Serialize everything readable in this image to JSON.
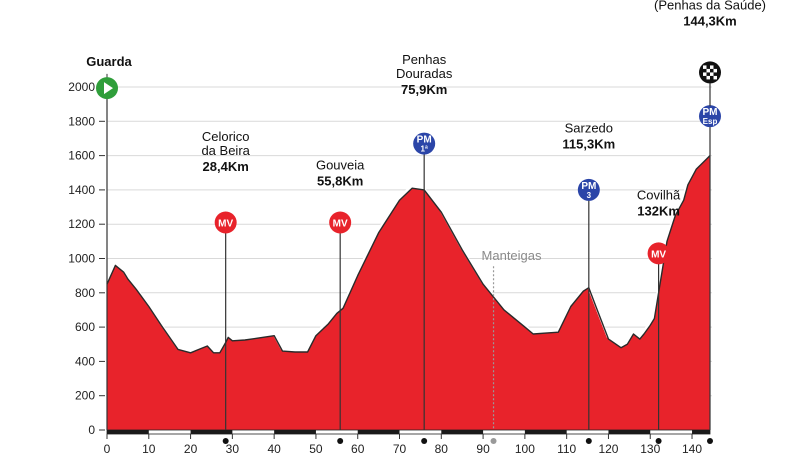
{
  "chart_data": {
    "type": "area",
    "title": "",
    "xlabel": "",
    "ylabel": "",
    "xlim": [
      0,
      144.3
    ],
    "ylim": [
      0,
      2100
    ],
    "x_ticks": [
      0,
      10,
      20,
      30,
      40,
      50,
      60,
      70,
      80,
      90,
      100,
      110,
      120,
      130,
      140
    ],
    "y_ticks": [
      0,
      200,
      400,
      600,
      800,
      1000,
      1200,
      1400,
      1600,
      1800,
      2000
    ],
    "fill_color": "#e8232b",
    "profile": [
      [
        0,
        850
      ],
      [
        2,
        960
      ],
      [
        4,
        920
      ],
      [
        5,
        880
      ],
      [
        7,
        820
      ],
      [
        10,
        720
      ],
      [
        13,
        610
      ],
      [
        17,
        470
      ],
      [
        20,
        450
      ],
      [
        22,
        470
      ],
      [
        24,
        490
      ],
      [
        25.5,
        450
      ],
      [
        27,
        450
      ],
      [
        28.4,
        510
      ],
      [
        29,
        540
      ],
      [
        30,
        520
      ],
      [
        33,
        525
      ],
      [
        36,
        535
      ],
      [
        40,
        550
      ],
      [
        42,
        460
      ],
      [
        45,
        455
      ],
      [
        48,
        455
      ],
      [
        50,
        550
      ],
      [
        53,
        620
      ],
      [
        55,
        680
      ],
      [
        56.5,
        710
      ],
      [
        60,
        900
      ],
      [
        65,
        1150
      ],
      [
        70,
        1340
      ],
      [
        73,
        1410
      ],
      [
        75.9,
        1400
      ],
      [
        80,
        1270
      ],
      [
        85,
        1050
      ],
      [
        90,
        850
      ],
      [
        95,
        700
      ],
      [
        100,
        600
      ],
      [
        102,
        560
      ],
      [
        105,
        565
      ],
      [
        108,
        570
      ],
      [
        111,
        720
      ],
      [
        114,
        810
      ],
      [
        115.3,
        830
      ],
      [
        117,
        720
      ],
      [
        120,
        530
      ],
      [
        123,
        480
      ],
      [
        124.5,
        500
      ],
      [
        126,
        560
      ],
      [
        127.5,
        530
      ],
      [
        128.5,
        560
      ],
      [
        130,
        610
      ],
      [
        131,
        650
      ],
      [
        132,
        800
      ],
      [
        134,
        1100
      ],
      [
        136,
        1250
      ],
      [
        138,
        1340
      ],
      [
        139,
        1430
      ],
      [
        141,
        1520
      ],
      [
        144.3,
        1600
      ]
    ],
    "points": [
      {
        "x": 0,
        "name": "Guarda",
        "km": "",
        "badge": "start",
        "label_y": 2075
      },
      {
        "x": 28.4,
        "name": "Celorico\nda Beira",
        "km": "28,4Km",
        "badge": "MV",
        "badge_y": 1210,
        "label_y": 1510
      },
      {
        "x": 55.8,
        "name": "Gouveia",
        "km": "55,8Km",
        "badge": "MV",
        "badge_y": 1210,
        "label_y": 1425
      },
      {
        "x": 75.9,
        "name": "Penhas\nDouradas",
        "km": "75,9Km",
        "badge": "PM",
        "badge_sub": "1ª",
        "badge_y": 1670,
        "label_y": 1960
      },
      {
        "x": 115.3,
        "name": "Sarzedo",
        "km": "115,3Km",
        "badge": "PM",
        "badge_sub": "3",
        "badge_y": 1400,
        "label_y": 1640
      },
      {
        "x": 132,
        "name": "Covilhã",
        "km": "132Km",
        "badge": "MV",
        "badge_y": 1030,
        "label_y": 1250
      },
      {
        "x": 144.3,
        "name": "Covilhã\n(Penhas da Saúde)",
        "km": "144,3Km",
        "badge": "PM",
        "badge_sub": "Esp",
        "badge_y": 1830,
        "finish_y": 2085,
        "label_y": 2360
      }
    ],
    "intermediate": {
      "x": 92.5,
      "name": "Manteigas",
      "label_y": 990
    },
    "badge_colors": {
      "MV": "#e8232b",
      "PM": "#2b45a8",
      "start": "#2f9e3a",
      "finish": "#111111"
    }
  }
}
